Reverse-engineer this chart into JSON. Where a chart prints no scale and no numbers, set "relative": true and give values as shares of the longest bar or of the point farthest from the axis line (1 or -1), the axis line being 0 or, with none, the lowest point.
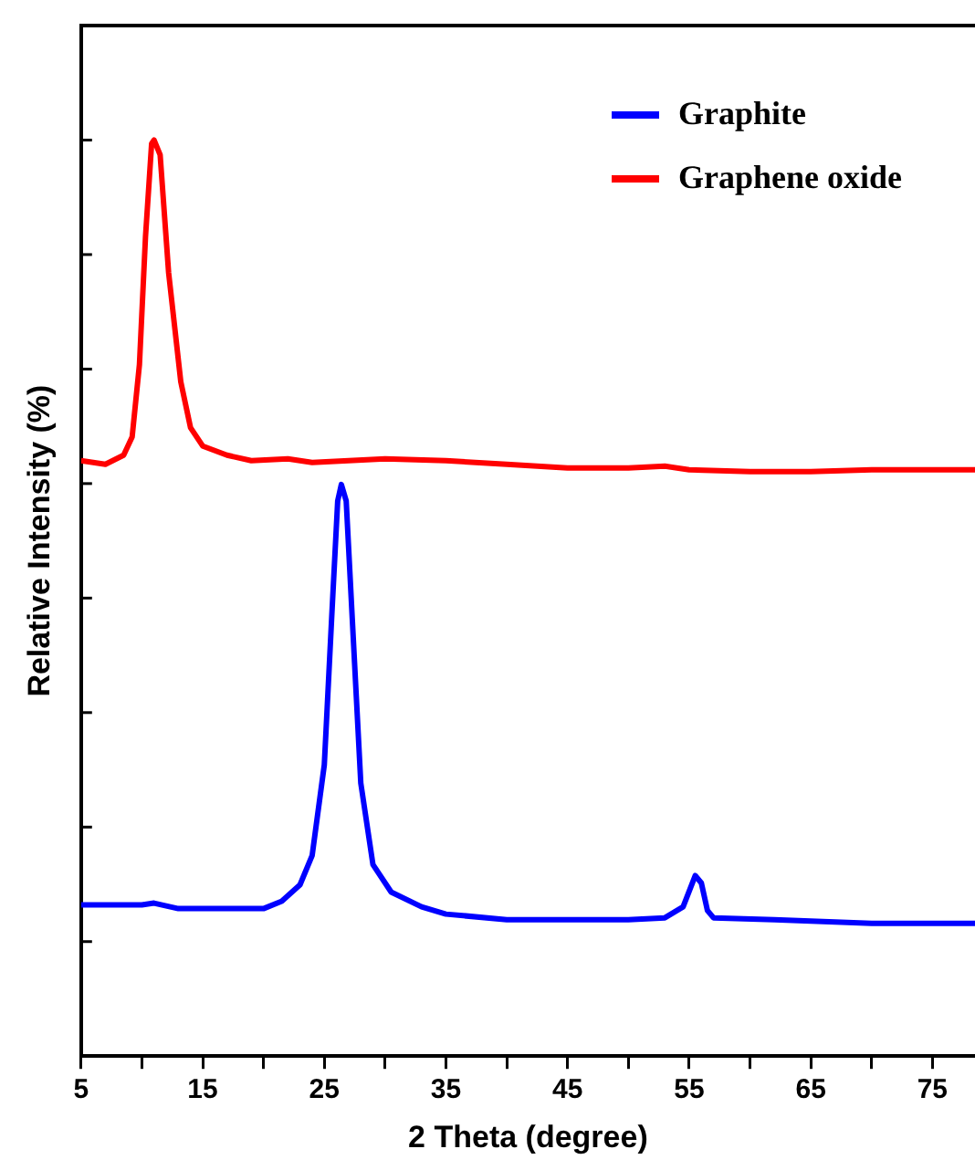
{
  "chart_data": {
    "type": "line",
    "xlabel": "2 Theta (degree)",
    "ylabel": "Relative Intensity (%)",
    "relative": true,
    "legend": "top right",
    "marker": "none",
    "line_style": "solid",
    "xlim": [
      5,
      78.5
    ],
    "xticks": [
      5,
      {
        "value": 10,
        "label": null
      },
      15,
      {
        "value": 20,
        "label": null
      },
      25,
      {
        "value": 30,
        "label": null
      },
      35,
      {
        "value": 40,
        "label": null
      },
      45,
      {
        "value": 50,
        "label": null
      },
      55,
      {
        "value": 60,
        "label": null
      },
      65,
      {
        "value": 70,
        "label": null
      },
      75
    ],
    "series": [
      {
        "name": "Graphite",
        "color": "#0000ff",
        "x": [
          5,
          10,
          11,
          13,
          17,
          20,
          21.5,
          23,
          24,
          25,
          25.6,
          26.1,
          26.4,
          26.8,
          27.3,
          28,
          29,
          30.5,
          33,
          35,
          40,
          45,
          50,
          53,
          54.5,
          55.5,
          56,
          56.5,
          57,
          62,
          70,
          78.5
        ],
        "values": [
          0.165,
          0.165,
          0.167,
          0.161,
          0.161,
          0.161,
          0.169,
          0.187,
          0.219,
          0.318,
          0.477,
          0.606,
          0.624,
          0.606,
          0.477,
          0.298,
          0.209,
          0.179,
          0.163,
          0.155,
          0.149,
          0.149,
          0.149,
          0.151,
          0.163,
          0.197,
          0.189,
          0.159,
          0.151,
          0.149,
          0.145,
          0.145
        ]
      },
      {
        "name": "Graphene oxide",
        "color": "#ff0000",
        "x": [
          5,
          7,
          8.5,
          9.2,
          9.8,
          10.3,
          10.8,
          11,
          11.5,
          12.2,
          13.2,
          14,
          15,
          17,
          19,
          22,
          24,
          27,
          30,
          35,
          40,
          45,
          50,
          53,
          55,
          60,
          65,
          70,
          78.5
        ],
        "values": [
          0.65,
          0.646,
          0.656,
          0.676,
          0.755,
          0.895,
          0.996,
          1,
          0.984,
          0.855,
          0.736,
          0.686,
          0.666,
          0.656,
          0.65,
          0.652,
          0.648,
          0.65,
          0.652,
          0.65,
          0.646,
          0.642,
          0.642,
          0.644,
          0.64,
          0.638,
          0.638,
          0.64,
          0.64
        ]
      }
    ]
  }
}
